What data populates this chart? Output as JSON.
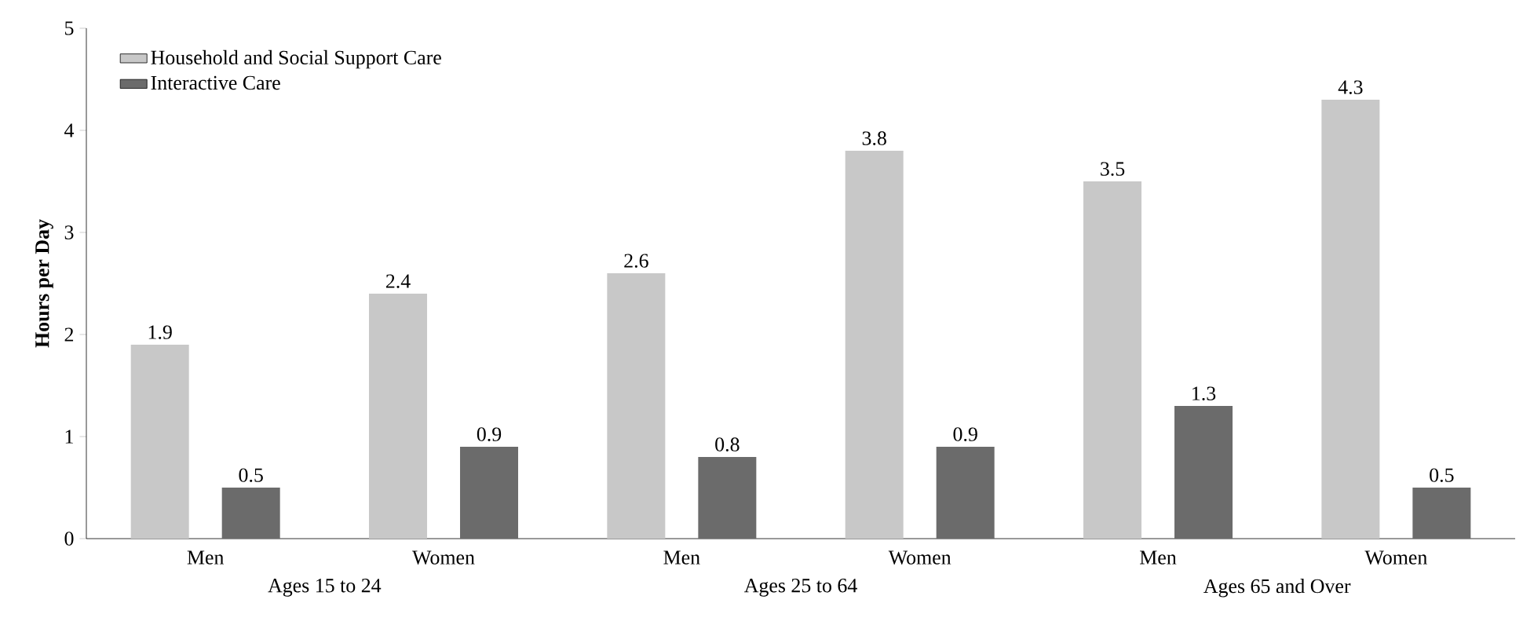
{
  "chart_data": {
    "type": "bar",
    "ylabel": "Hours per Day",
    "categories": [
      "Men",
      "Women",
      "Men",
      "Women",
      "Men",
      "Women"
    ],
    "series": [
      {
        "name": "Household and Social Support Care",
        "color": "#c8c8c8",
        "values": [
          1.9,
          2.4,
          2.6,
          3.8,
          3.5,
          4.3
        ]
      },
      {
        "name": "Interactive Care",
        "color": "#6b6b6b",
        "values": [
          0.5,
          0.9,
          0.8,
          0.9,
          1.3,
          0.5
        ]
      }
    ],
    "annotations": [
      "Ages 15 to 24",
      "Ages 25 to 64",
      "Ages 65 and Over"
    ],
    "ylim": [
      0,
      5
    ],
    "yticks": [
      0,
      1,
      2,
      3,
      4,
      5
    ],
    "data_labels": true,
    "legend": "top left",
    "grid": false
  }
}
